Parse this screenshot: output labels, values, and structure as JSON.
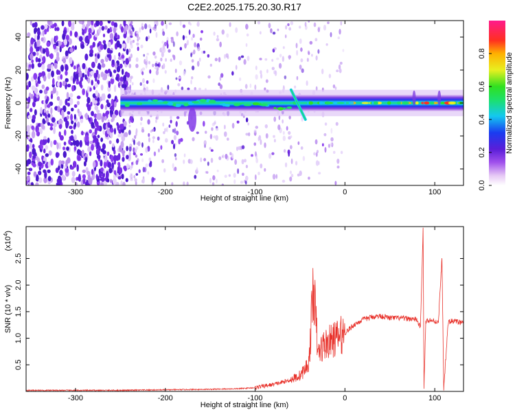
{
  "title": "C2E2.2025.175.20.30.R17",
  "colors": {
    "snr_line": "#e8312a",
    "frame": "#000000"
  },
  "chart_data": [
    {
      "type": "heatmap",
      "xlabel": "Height of straight line (km)",
      "ylabel": "Frequency (Hz)",
      "xlim": [
        -355,
        132
      ],
      "ylim": [
        -50,
        50
      ],
      "x_ticks": [
        -300,
        -200,
        -100,
        0,
        100
      ],
      "y_ticks": [
        -40,
        -20,
        0,
        20,
        40
      ],
      "colorbar": {
        "label": "Normalized spectral amplitude",
        "range": [
          0,
          1
        ],
        "ticks": [
          0.0,
          0.2,
          0.4,
          0.6,
          0.8
        ],
        "tick_labels": [
          "0.0",
          "0.2",
          "0.4",
          "0.6",
          "0.8"
        ],
        "colormap": "rainbow (white → violet → blue → cyan → green → yellow → orange → red → magenta)"
      },
      "features": [
        {
          "description": "scattered low-amplitude noise",
          "x_range": [
            -355,
            -240
          ],
          "y_range": [
            -50,
            50
          ],
          "amplitude": 0.15
        },
        {
          "description": "main signal band near 0 Hz",
          "x_range": [
            -250,
            132
          ],
          "y": 0,
          "amplitude": 0.8
        },
        {
          "description": "diagonal streak",
          "x_range": [
            -60,
            -42
          ],
          "y_range": [
            -10,
            8
          ]
        },
        {
          "description": "vertical spikes",
          "x": [
            77,
            105
          ],
          "y_range": [
            -6,
            15
          ]
        }
      ]
    },
    {
      "type": "line",
      "xlabel": "Height of straight line (km)",
      "ylabel": "SNR (10 * v/v)",
      "y_multiplier": "(x10",
      "y_multiplier_exp": "4",
      "y_multiplier_close": ")",
      "xlim": [
        -355,
        132
      ],
      "ylim": [
        0,
        3.1
      ],
      "x_ticks": [
        -300,
        -200,
        -100,
        0,
        100
      ],
      "y_ticks": [
        0.5,
        1.0,
        1.5,
        2.0,
        2.5
      ],
      "series": [
        {
          "x": [
            -355,
            -300,
            -250,
            -200,
            -150,
            -120,
            -100,
            -90,
            -80,
            -70,
            -60,
            -50,
            -45,
            -40,
            -35,
            -30,
            -25,
            -20,
            -10,
            0,
            10,
            20,
            30,
            40,
            50,
            60,
            70,
            80,
            84,
            87,
            88,
            90,
            92,
            100,
            104,
            108,
            110,
            115,
            120,
            132
          ],
          "y": [
            0.02,
            0.02,
            0.02,
            0.03,
            0.04,
            0.05,
            0.07,
            0.1,
            0.13,
            0.17,
            0.22,
            0.3,
            0.4,
            0.55,
            2.03,
            0.7,
            0.85,
            0.9,
            1.0,
            1.1,
            1.25,
            1.35,
            1.4,
            1.42,
            1.38,
            1.38,
            1.37,
            1.35,
            1.2,
            3.05,
            0.05,
            1.3,
            1.35,
            1.32,
            1.3,
            2.5,
            0.05,
            1.3,
            1.33,
            1.28
          ]
        }
      ]
    }
  ]
}
